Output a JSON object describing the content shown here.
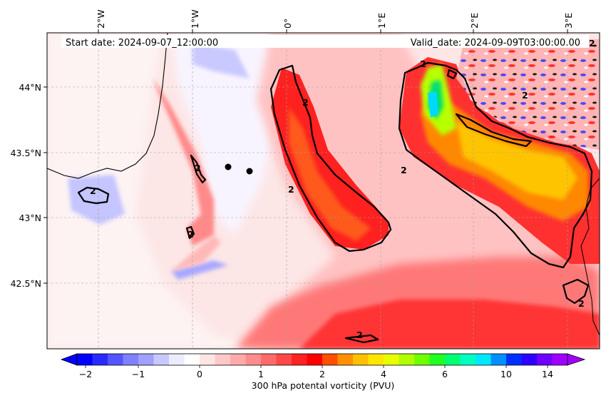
{
  "header": {
    "start_date": "Start date: 2024-09-07_12:00:00",
    "valid_date": "Valid_date: 2024-09-09T03:00:00.00"
  },
  "longitude_labels": [
    "2°W",
    "1°W",
    "0°",
    "1°E",
    "2°E",
    "3°E"
  ],
  "latitude_labels": [
    "44°N",
    "43.5°N",
    "43°N",
    "42.5°N"
  ],
  "contour_label": "2",
  "colorbar": {
    "label": "300 hPa potental vorticity (PVU)",
    "tick_labels": [
      "−2",
      "−1",
      "0",
      "1",
      "2",
      "4",
      "6",
      "10",
      "14"
    ],
    "colors": [
      "#0000ff",
      "#2a2aff",
      "#5555ff",
      "#7f7fff",
      "#a0a0ff",
      "#c8c8ff",
      "#ececff",
      "#ffffff",
      "#ffe4e4",
      "#ffc8c8",
      "#ffaaaa",
      "#ff8c8c",
      "#ff6a6a",
      "#ff4848",
      "#ff2222",
      "#ff0000",
      "#ff5000",
      "#ff9000",
      "#ffc000",
      "#ffe600",
      "#e8ff00",
      "#b0ff00",
      "#70ff00",
      "#20ff20",
      "#00ff70",
      "#00ffc0",
      "#00e8ff",
      "#0090ff",
      "#0030ff",
      "#3000ff",
      "#7000ff",
      "#a000ff"
    ]
  },
  "colors": {
    "frame": "#000000",
    "contour": "#000000",
    "coastline": "#000000"
  }
}
